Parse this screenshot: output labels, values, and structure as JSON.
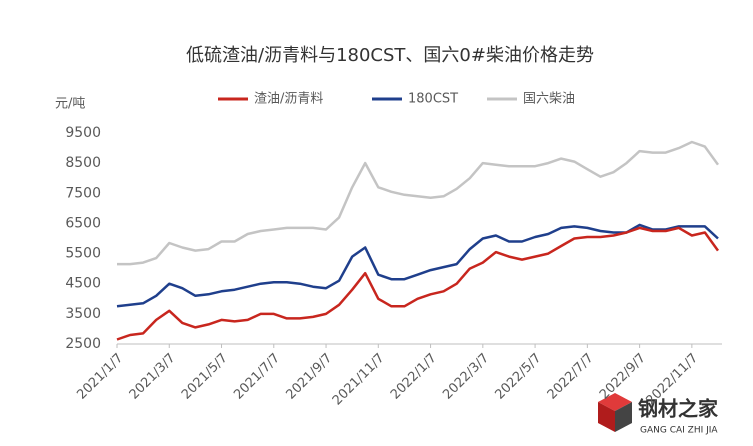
{
  "chart_data": {
    "type": "line",
    "title": "低硫渣油/沥青料与180CST、国六0#柴油价格走势",
    "y_label": "元/吨",
    "categories": [
      "2021/1/7",
      null,
      null,
      null,
      "2021/3/7",
      null,
      null,
      null,
      "2021/5/7",
      null,
      null,
      null,
      "2021/7/7",
      null,
      null,
      null,
      "2021/9/7",
      null,
      null,
      null,
      "2021/11/7",
      null,
      null,
      null,
      "2022/1/7",
      null,
      null,
      null,
      "2022/3/7",
      null,
      null,
      null,
      "2022/5/7",
      null,
      null,
      null,
      "2022/7/7",
      null,
      null,
      null,
      "2022/9/7",
      null,
      null,
      null,
      "2022/11/7",
      null,
      null
    ],
    "series": [
      {
        "name": "渣油/沥青料",
        "color": "#c8261e",
        "values": [
          2650,
          2800,
          2850,
          3300,
          3600,
          3200,
          3050,
          3150,
          3300,
          3250,
          3300,
          3500,
          3500,
          3350,
          3350,
          3400,
          3500,
          3800,
          4300,
          4850,
          4000,
          3750,
          3750,
          4000,
          4150,
          4250,
          4500,
          5000,
          5200,
          5550,
          5400,
          5300,
          5400,
          5500,
          5750,
          6000,
          6050,
          6050,
          6100,
          6200,
          6350,
          6250,
          6250,
          6350,
          6100,
          6200,
          5600
        ]
      },
      {
        "name": "180CST",
        "color": "#1f3f8c",
        "values": [
          3750,
          3800,
          3850,
          4100,
          4500,
          4350,
          4100,
          4150,
          4250,
          4300,
          4400,
          4500,
          4550,
          4550,
          4500,
          4400,
          4350,
          4600,
          5400,
          5700,
          4800,
          4650,
          4650,
          4800,
          4950,
          5050,
          5150,
          5650,
          6000,
          6100,
          5900,
          5900,
          6050,
          6150,
          6350,
          6400,
          6350,
          6250,
          6200,
          6200,
          6450,
          6300,
          6300,
          6400,
          6400,
          6400,
          6000
        ]
      },
      {
        "name": "国六柴油",
        "color": "#c4c4c4",
        "values": [
          5150,
          5150,
          5200,
          5350,
          5850,
          5700,
          5600,
          5650,
          5900,
          5900,
          6150,
          6250,
          6300,
          6350,
          6350,
          6350,
          6300,
          6700,
          7700,
          8500,
          7700,
          7550,
          7450,
          7400,
          7350,
          7400,
          7650,
          8000,
          8500,
          8450,
          8400,
          8400,
          8400,
          8500,
          8650,
          8550,
          8300,
          8050,
          8200,
          8500,
          8900,
          8850,
          8850,
          9000,
          9200,
          9050,
          8450
        ]
      }
    ],
    "ylim": [
      2500,
      9500
    ],
    "yticks": [
      2500,
      3500,
      4500,
      5500,
      6500,
      7500,
      8500,
      9500
    ],
    "grid": false,
    "legend": "top"
  },
  "watermark": {
    "name": "钢材之家",
    "pinyin": "GANG CAI ZHI JIA"
  }
}
